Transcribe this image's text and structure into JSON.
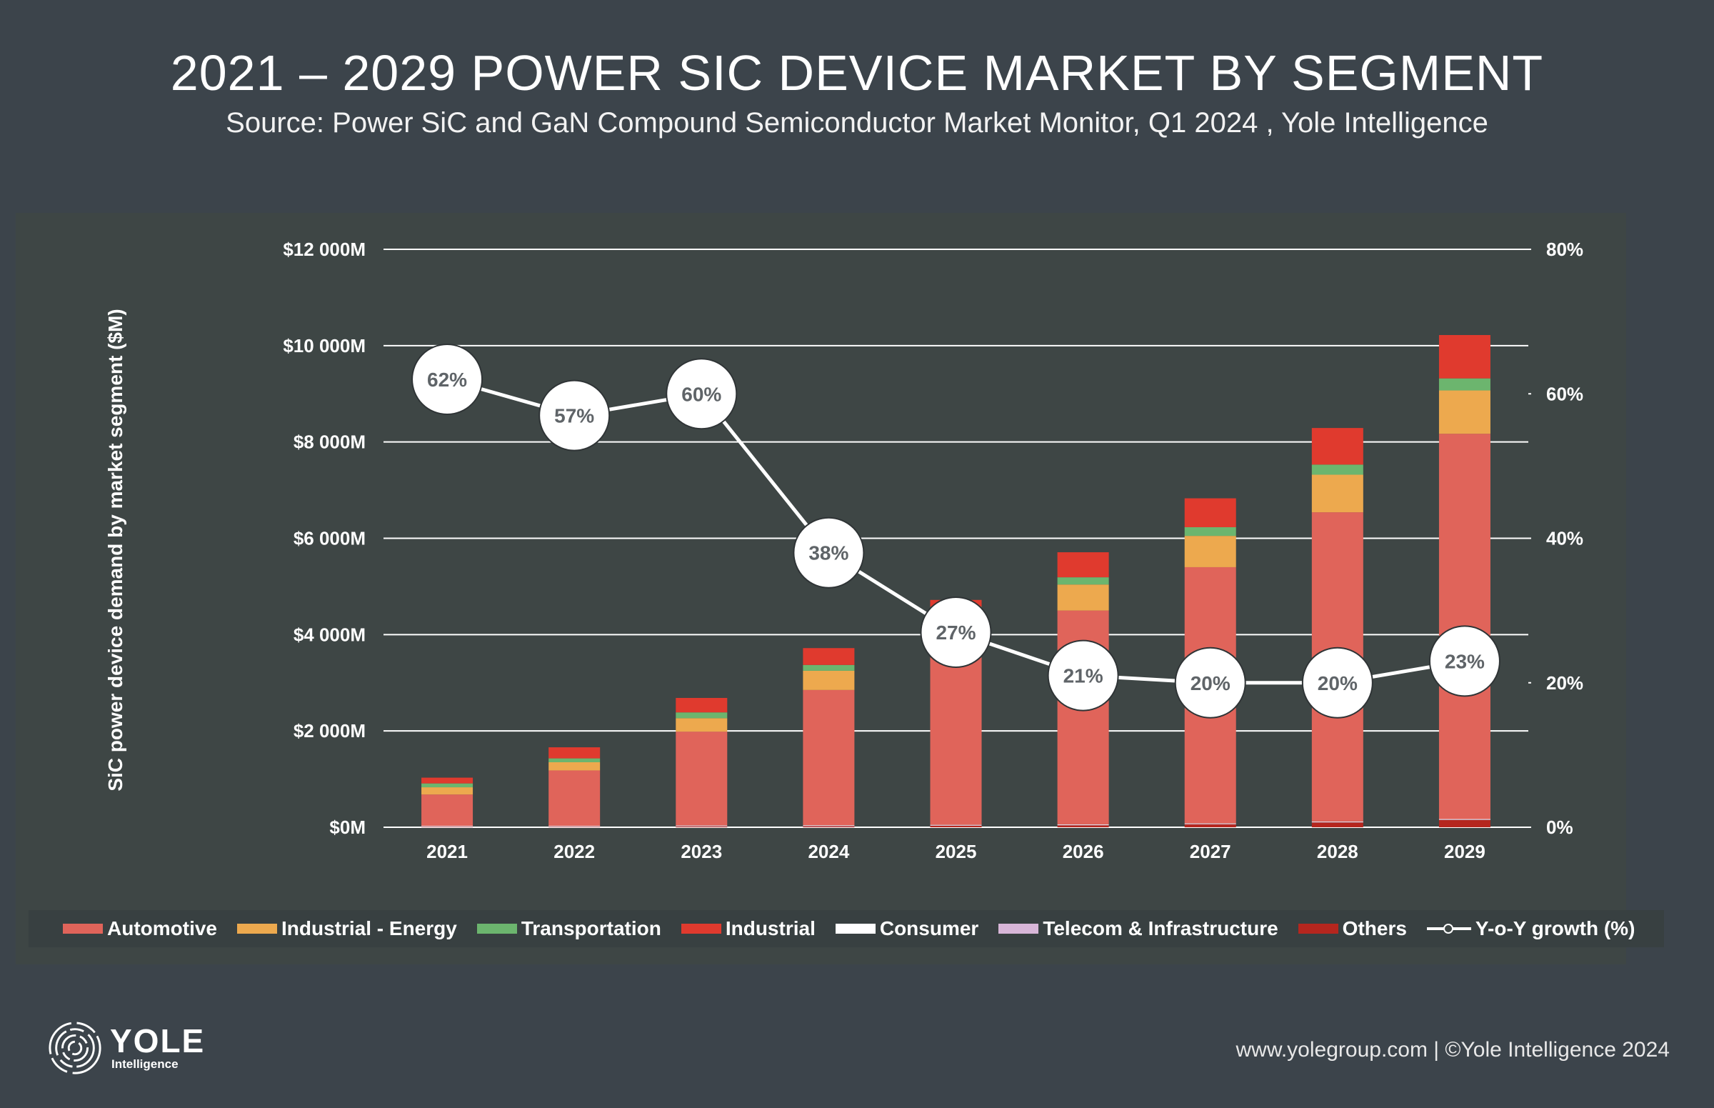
{
  "header": {
    "title": "2021 – 2029 POWER SIC DEVICE MARKET BY SEGMENT",
    "subtitle": "Source: Power SiC and GaN Compound Semiconductor Market Monitor, Q1 2024 , Yole Intelligence"
  },
  "chart_data": {
    "type": "bar",
    "stacked": true,
    "title": "2021 – 2029 POWER SIC DEVICE MARKET BY SEGMENT",
    "ylabel": "SiC power device demand by market segment ($M)",
    "y2label": "Y-o-Y growth (%)",
    "ylim": [
      0,
      12000
    ],
    "y2lim": [
      0,
      80
    ],
    "yticks": [
      "$0M",
      "$2 000M",
      "$4 000M",
      "$6 000M",
      "$8 000M",
      "$10 000M",
      "$12 000M"
    ],
    "y2ticks": [
      "0%",
      "20%",
      "40%",
      "60%",
      "80%"
    ],
    "categories": [
      "2021",
      "2022",
      "2023",
      "2024",
      "2025",
      "2026",
      "2027",
      "2028",
      "2029"
    ],
    "series": [
      {
        "name": "Others",
        "color": "#b5261e",
        "values": [
          10,
          10,
          15,
          20,
          30,
          40,
          60,
          100,
          150
        ]
      },
      {
        "name": "Telecom & Infrastructure",
        "color": "#d8b6d8",
        "values": [
          10,
          10,
          10,
          10,
          10,
          10,
          10,
          10,
          10
        ]
      },
      {
        "name": "Consumer",
        "color": "#ffffff",
        "values": [
          10,
          10,
          10,
          10,
          10,
          10,
          10,
          10,
          10
        ]
      },
      {
        "name": "Automotive",
        "color": "#e0645a",
        "values": [
          650,
          1150,
          1950,
          2810,
          3900,
          4440,
          5320,
          6420,
          8000
        ]
      },
      {
        "name": "Industrial - Energy",
        "color": "#eda94e",
        "values": [
          150,
          170,
          280,
          400,
          500,
          540,
          650,
          780,
          900
        ]
      },
      {
        "name": "Transportation",
        "color": "#6cb56e",
        "values": [
          80,
          80,
          120,
          120,
          130,
          150,
          180,
          210,
          250
        ]
      },
      {
        "name": "Industrial",
        "color": "#e03a2e",
        "values": [
          120,
          230,
          300,
          350,
          140,
          520,
          600,
          760,
          900
        ]
      }
    ],
    "line": {
      "name": "Y-o-Y growth (%)",
      "values": [
        62,
        57,
        60,
        38,
        27,
        21,
        20,
        20,
        23
      ],
      "labels": [
        "62%",
        "57%",
        "60%",
        "38%",
        "27%",
        "21%",
        "20%",
        "20%",
        "23%"
      ]
    }
  },
  "legend": [
    {
      "label": "Automotive",
      "color": "#e0645a",
      "kind": "bar"
    },
    {
      "label": "Industrial - Energy",
      "color": "#eda94e",
      "kind": "bar"
    },
    {
      "label": "Transportation",
      "color": "#6cb56e",
      "kind": "bar"
    },
    {
      "label": "Industrial",
      "color": "#e03a2e",
      "kind": "bar"
    },
    {
      "label": "Consumer",
      "color": "#ffffff",
      "kind": "bar"
    },
    {
      "label": "Telecom & Infrastructure",
      "color": "#d8b6d8",
      "kind": "bar"
    },
    {
      "label": "Others",
      "color": "#b5261e",
      "kind": "bar"
    },
    {
      "label": "Y-o-Y growth (%)",
      "color": "#ffffff",
      "kind": "line"
    }
  ],
  "brand": {
    "name": "YOLE",
    "sub": "Intelligence"
  },
  "footer": {
    "text": "www.yolegroup.com | ©Yole Intelligence 2024"
  }
}
